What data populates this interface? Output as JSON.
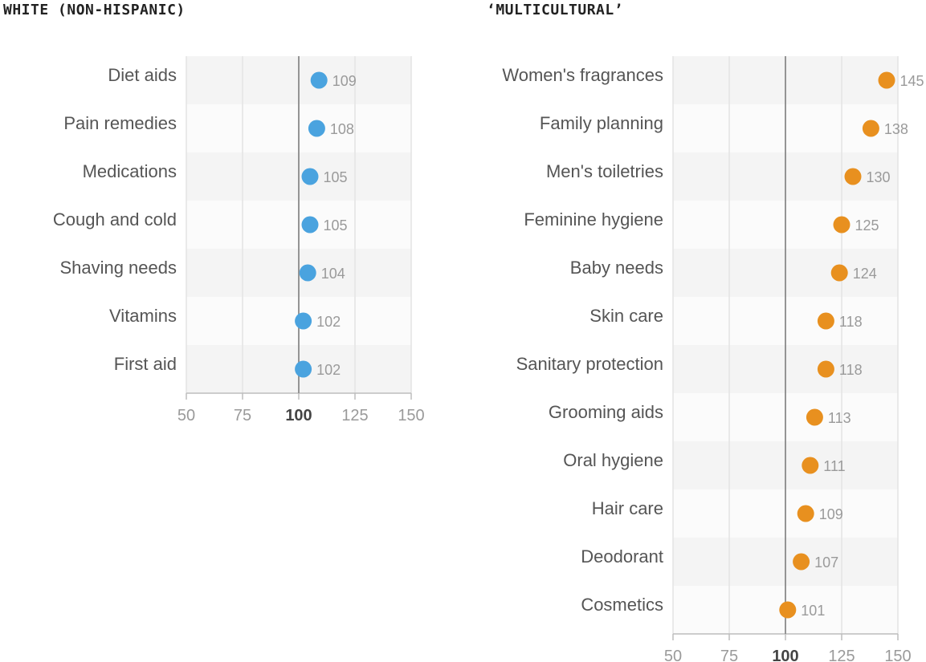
{
  "chart_data": [
    {
      "type": "dot",
      "title": "WHITE (NON-HISPANIC)",
      "color": "#4aa3df",
      "xlim": [
        50,
        150
      ],
      "reference": 100,
      "xticks": [
        "50",
        "75",
        "100",
        "125",
        "150"
      ],
      "categories": [
        "Diet aids",
        "Pain remedies",
        "Medications",
        "Cough and cold",
        "Shaving needs",
        "Vitamins",
        "First aid"
      ],
      "values": [
        109,
        108,
        105,
        105,
        104,
        102,
        102
      ]
    },
    {
      "type": "dot",
      "title": "‘MULTICULTURAL’",
      "color": "#e8901f",
      "xlim": [
        50,
        150
      ],
      "reference": 100,
      "xticks": [
        "50",
        "75",
        "100",
        "125",
        "150"
      ],
      "categories": [
        "Women's fragrances",
        "Family planning",
        "Men's toiletries",
        "Feminine hygiene",
        "Baby needs",
        "Skin care",
        "Sanitary protection",
        "Grooming aids",
        "Oral hygiene",
        "Hair care",
        "Deodorant",
        "Cosmetics"
      ],
      "values": [
        145,
        138,
        130,
        125,
        124,
        118,
        118,
        113,
        111,
        109,
        107,
        101
      ]
    }
  ]
}
